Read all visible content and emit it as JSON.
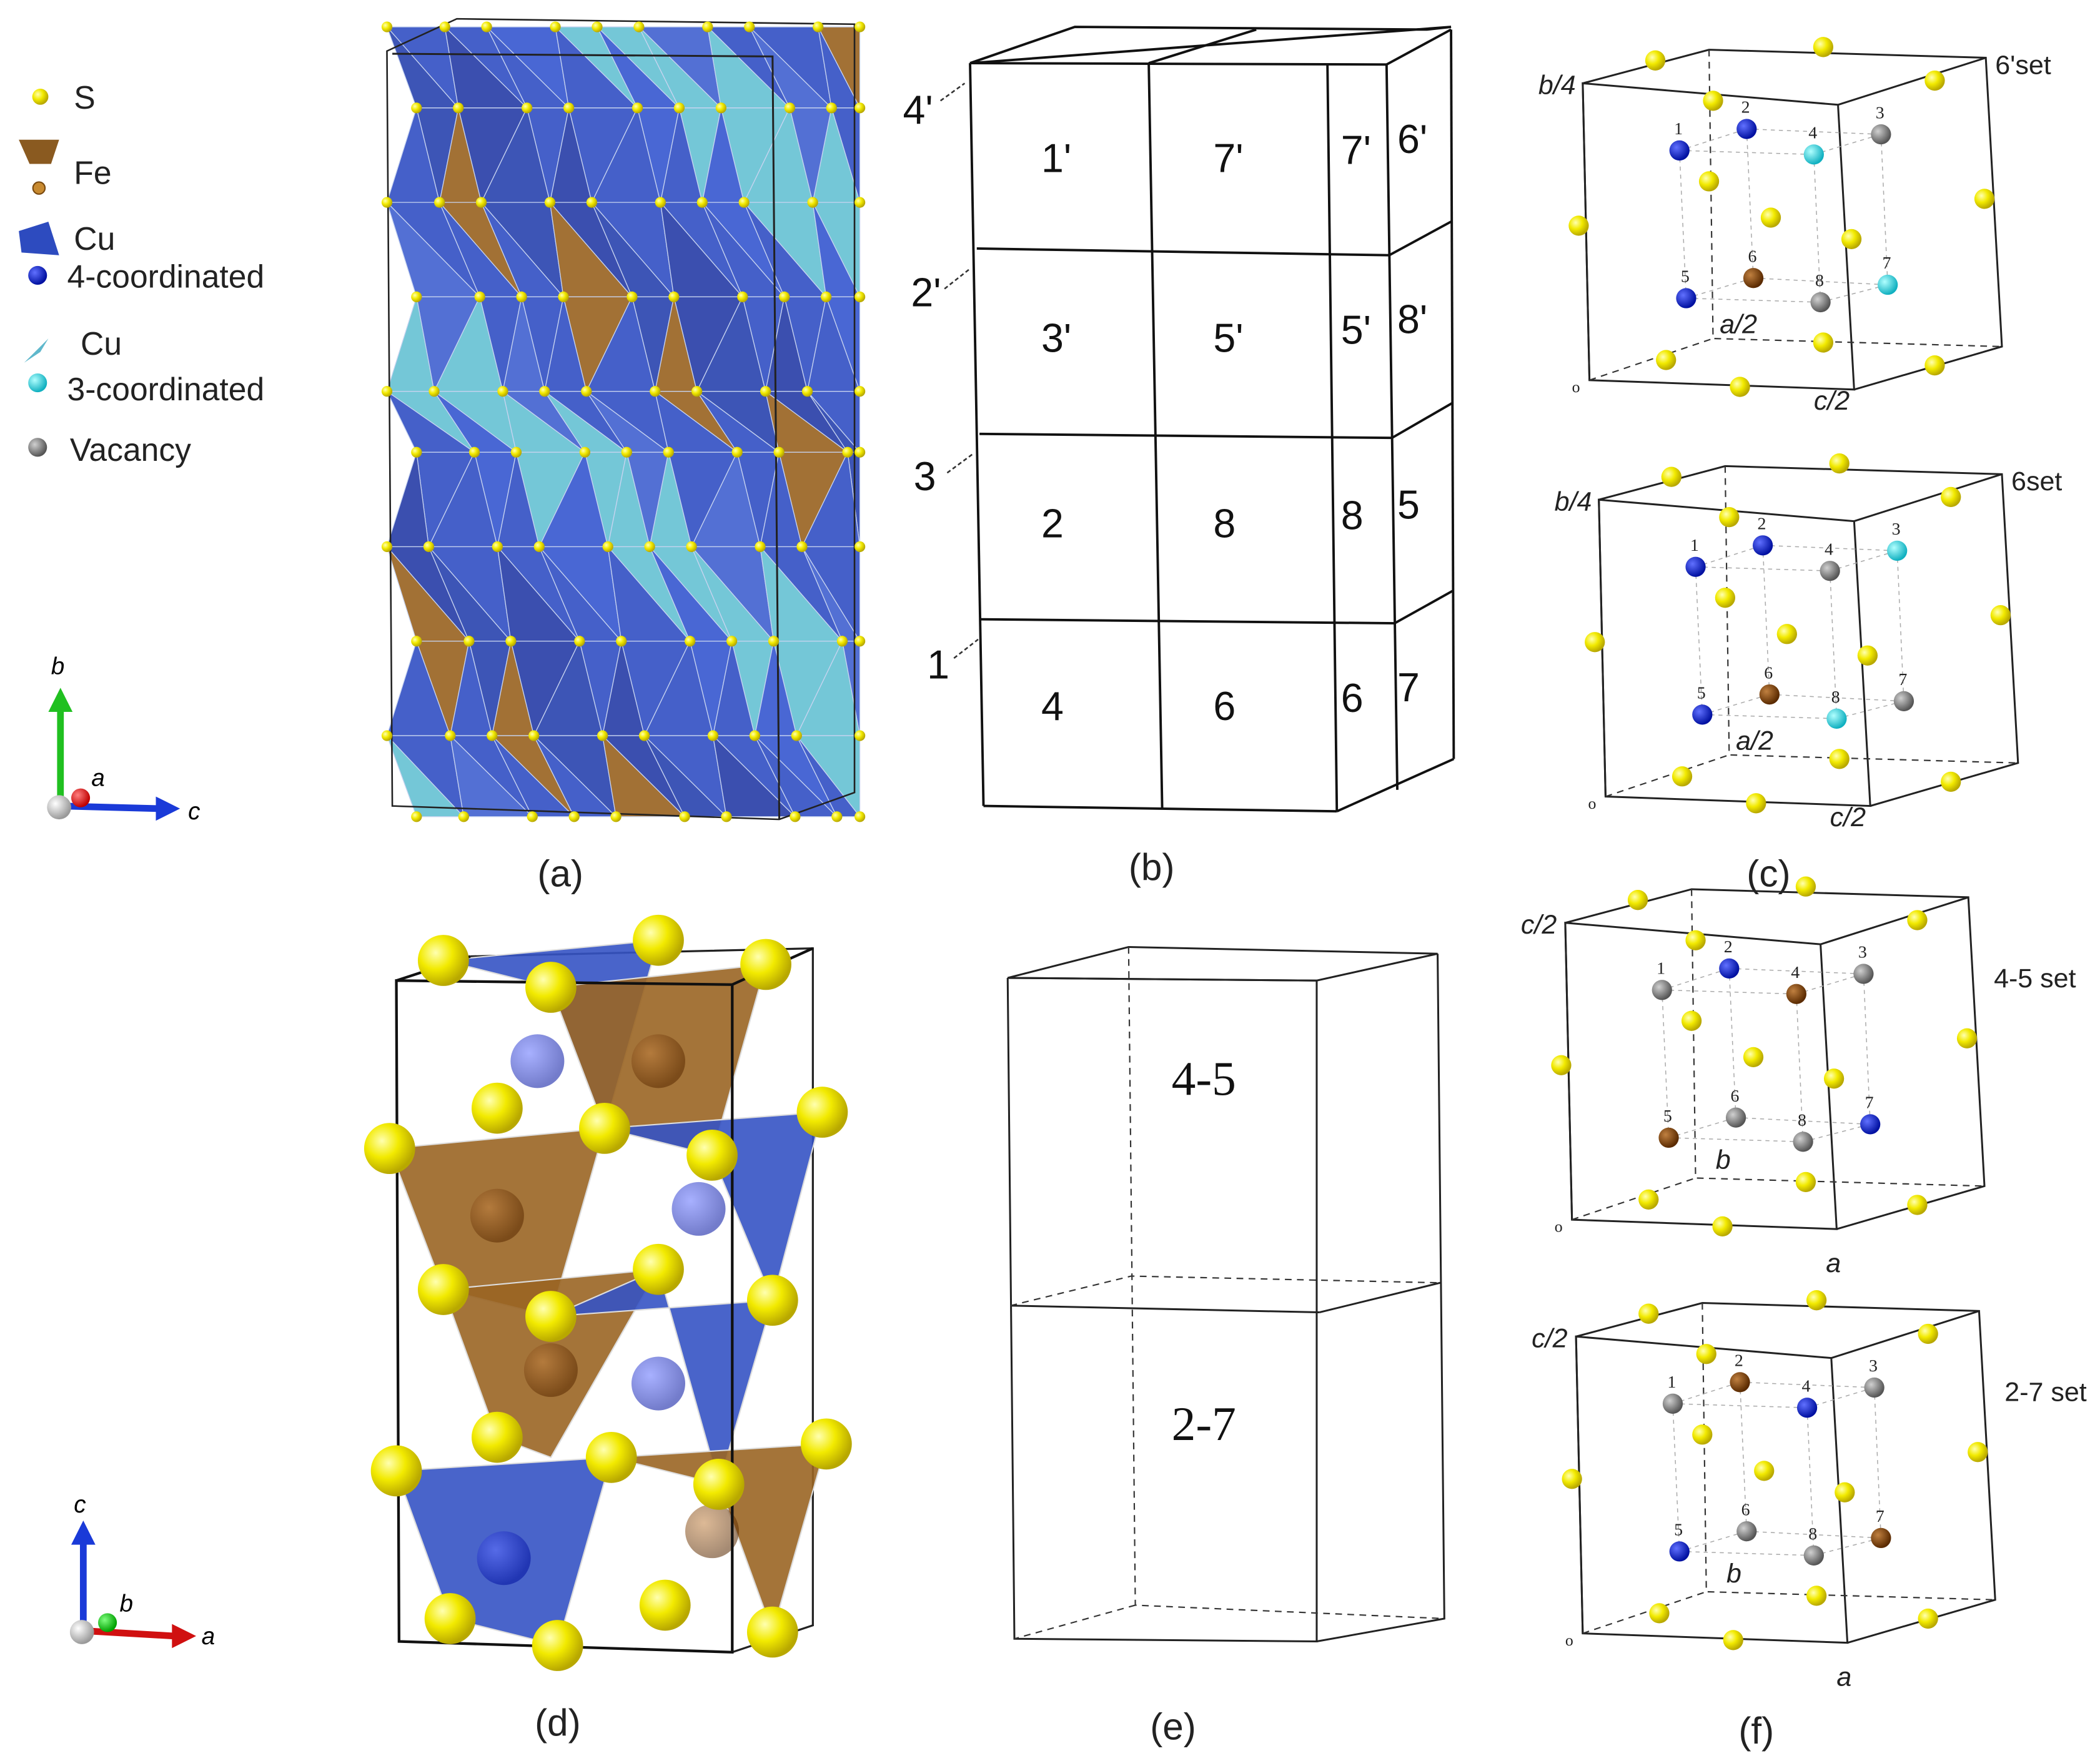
{
  "colors": {
    "S": "#f2ea00",
    "Fe": "#8a4a10",
    "Cu4": "#1020d8",
    "Cu3": "#30e0e8",
    "vacancy": "#8a8a8a",
    "poly_blue": "#3553c4",
    "poly_cyan": "#68c2d4",
    "poly_brown": "#9a6524"
  },
  "legend": [
    {
      "label": "S",
      "icon": "yellow-sphere"
    },
    {
      "label": "Fe",
      "icon": "brown-tetrahedron"
    },
    {
      "label": "Cu",
      "icon": "blue-tetrahedron"
    },
    {
      "label": "4-coordinated",
      "icon": "blue-sphere"
    },
    {
      "label": "Cu",
      "icon": "cyan-triangle"
    },
    {
      "label": "3-coordinated",
      "icon": "cyan-sphere"
    },
    {
      "label": "Vacancy",
      "icon": "gray-sphere"
    }
  ],
  "axes_a": {
    "up": "b",
    "in": "a",
    "right": "c"
  },
  "axes_d": {
    "up": "c",
    "in": "b",
    "right": "a"
  },
  "panel_b": {
    "layer_labels": [
      "4'",
      "2'",
      "3",
      "1"
    ],
    "rows": [
      [
        "1'",
        "7'",
        "7'",
        "6'"
      ],
      [
        "3'",
        "5'",
        "5'",
        "8'"
      ],
      [
        "2",
        "8",
        "8",
        "5"
      ],
      [
        "4",
        "6",
        "6",
        "7"
      ]
    ]
  },
  "panel_e": {
    "upper": "4-5",
    "lower": "2-7"
  },
  "site_labels": [
    "1",
    "2",
    "3",
    "4",
    "5",
    "6",
    "7",
    "8"
  ],
  "sets": [
    {
      "name": "6'set",
      "axis_v": "b/4",
      "axis_depth": "a/2",
      "axis_h": "c/2",
      "origin": "o",
      "sites": [
        "Cu4",
        "Cu4",
        "vacancy",
        "Cu3",
        "Cu4",
        "Fe",
        "Cu3",
        "vacancy"
      ]
    },
    {
      "name": "6set",
      "axis_v": "b/4",
      "axis_depth": "a/2",
      "axis_h": "c/2",
      "origin": "o",
      "sites": [
        "Cu4",
        "Cu4",
        "Cu3",
        "vacancy",
        "Cu4",
        "Fe",
        "vacancy",
        "Cu3"
      ]
    },
    {
      "name": "4-5 set",
      "axis_v": "c/2",
      "axis_depth": "b",
      "axis_h": "a",
      "origin": "o",
      "sites": [
        "vacancy",
        "Cu4",
        "vacancy",
        "Fe",
        "Fe",
        "vacancy",
        "Cu4",
        "vacancy"
      ]
    },
    {
      "name": "2-7 set",
      "axis_v": "c/2",
      "axis_depth": "b",
      "axis_h": "a",
      "origin": "o",
      "sites": [
        "vacancy",
        "Fe",
        "vacancy",
        "Cu4",
        "Cu4",
        "vacancy",
        "Fe",
        "vacancy"
      ]
    }
  ],
  "captions": {
    "a": "(a)",
    "b": "(b)",
    "c": "(c)",
    "d": "(d)",
    "e": "(e)",
    "f": "(f)"
  }
}
